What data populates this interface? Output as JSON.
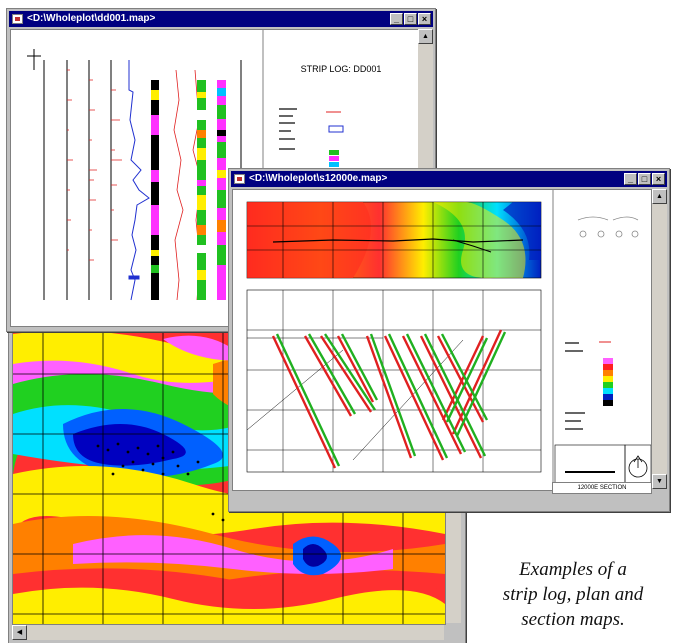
{
  "windows": {
    "strip_log": {
      "title": "<D:\\Wholeplot\\dd001.map>",
      "heading": "STRIP LOG: DD001"
    },
    "section": {
      "title": "<D:\\Wholeplot\\s12000e.map>",
      "footer": "12000E SECTION"
    }
  },
  "window_buttons": {
    "minimize": "_",
    "maximize": "□",
    "close": "×"
  },
  "scroll_arrows": {
    "up": "▲",
    "down": "▼",
    "left": "◀",
    "right": "▶"
  },
  "caption": {
    "line1": "Examples of a",
    "line2": "strip log, plan and",
    "line3": "section maps."
  },
  "colors": {
    "titlebar": "#000080",
    "window_face": "#c0c0c0",
    "hole_trace_red": "#e02020",
    "hole_trace_green": "#20b020"
  }
}
